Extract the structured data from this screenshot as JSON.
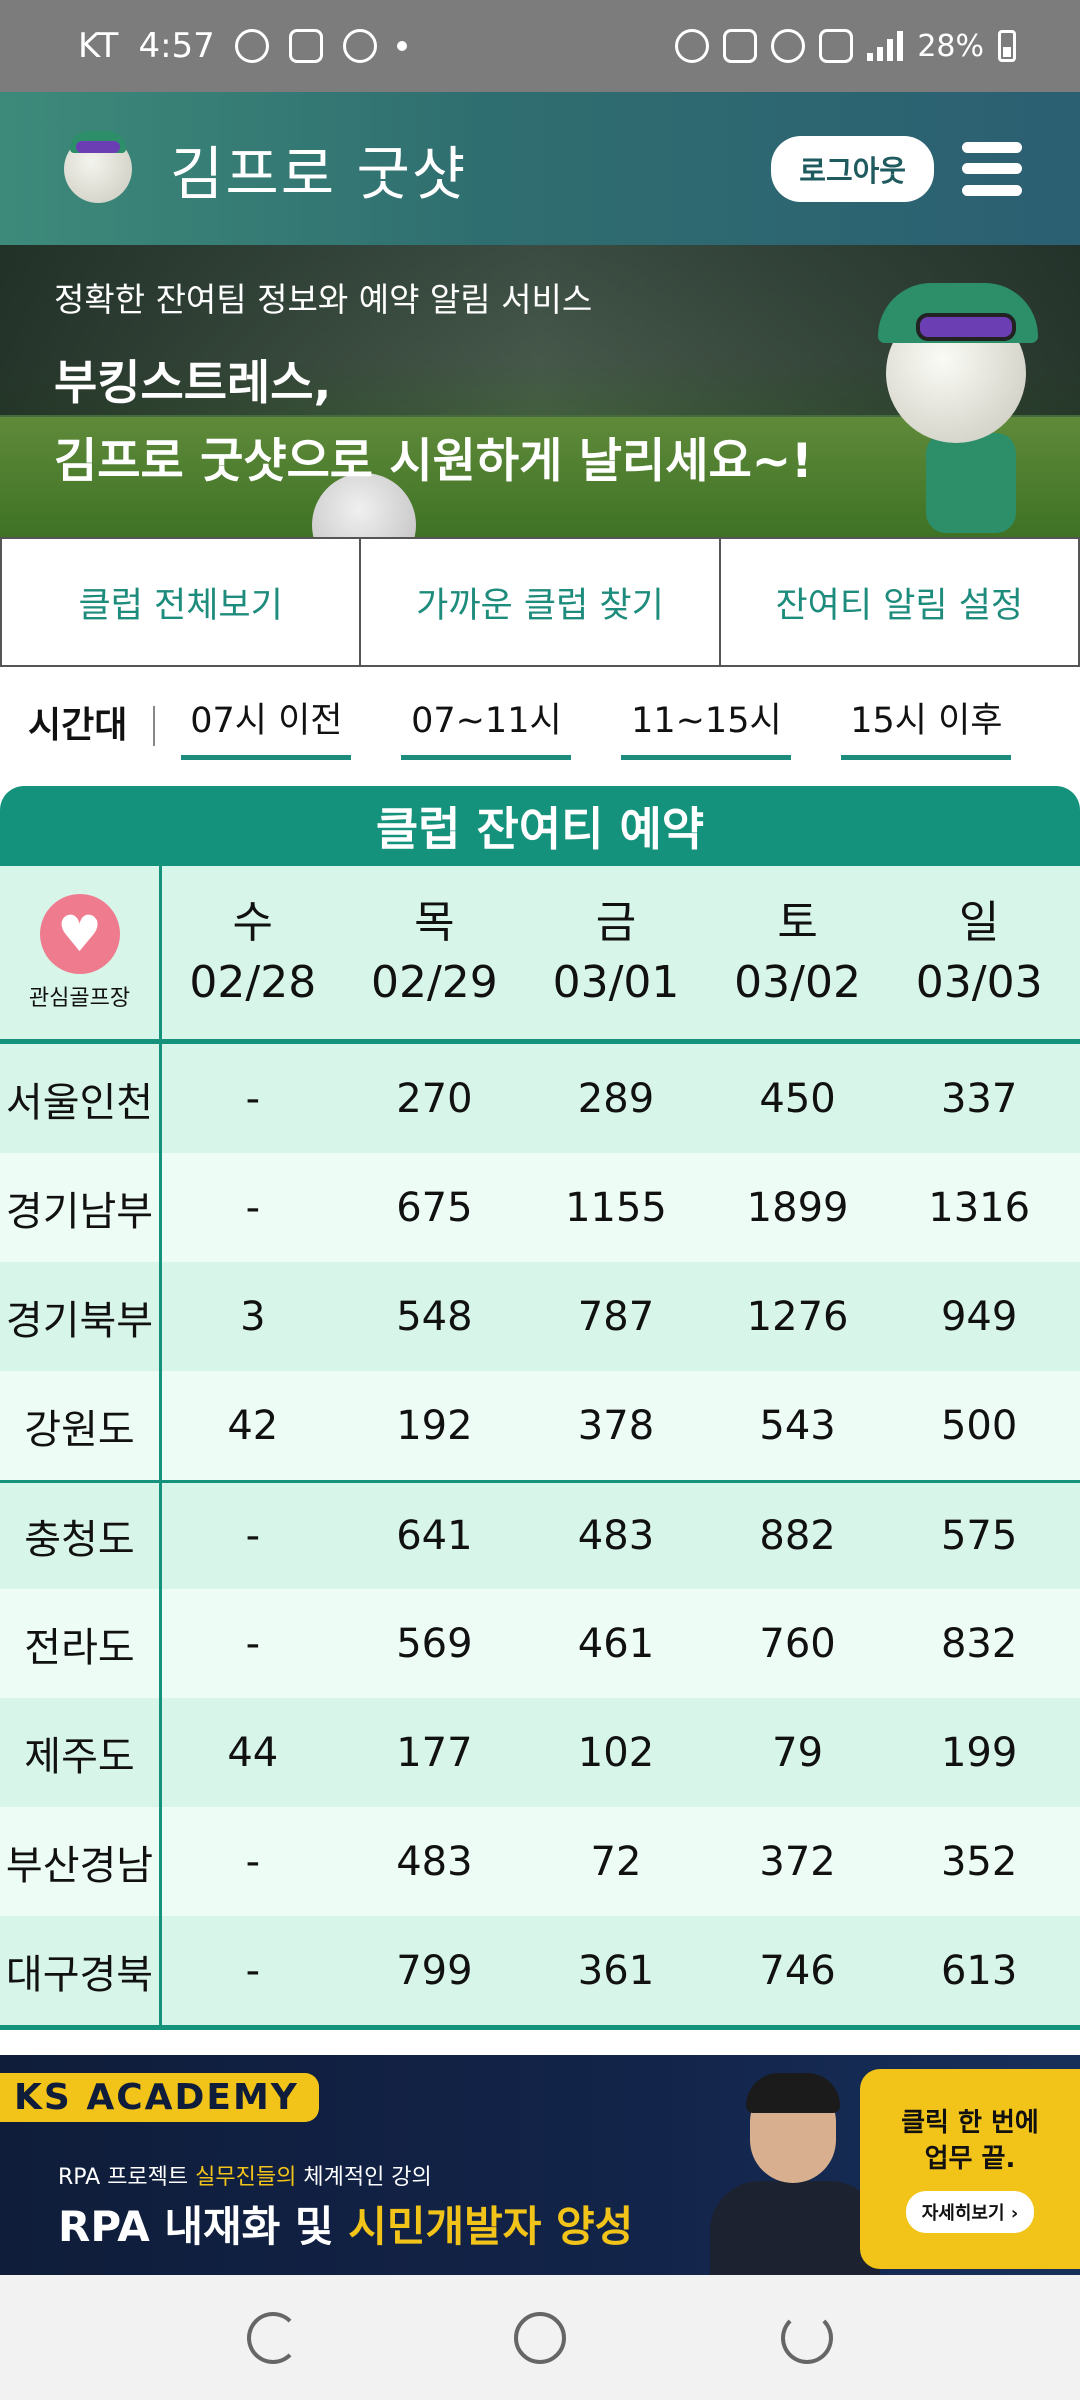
{
  "status_bar": {
    "carrier": "KT",
    "time": "4:57",
    "battery": "28%"
  },
  "header": {
    "title": "김프로 굿샷",
    "logout_label": "로그아웃"
  },
  "banner": {
    "subtitle": "정확한 잔여팀 정보와 예약 알림 서비스",
    "headline_line1": "부킹스트레스,",
    "headline_line2": "김프로 굿샷으로 시원하게 날리세요~!"
  },
  "nav": [
    "클럽 전체보기",
    "가까운 클럽 찾기",
    "잔여티 알림 설정"
  ],
  "time_filter": {
    "label": "시간대",
    "options": [
      "07시 이전",
      "07~11시",
      "11~15시",
      "15시 이후"
    ]
  },
  "table": {
    "title": "클럽 잔여티 예약",
    "favorite_label": "관심골프장",
    "days": [
      {
        "weekday": "수",
        "date": "02/28"
      },
      {
        "weekday": "목",
        "date": "02/29"
      },
      {
        "weekday": "금",
        "date": "03/01"
      },
      {
        "weekday": "토",
        "date": "03/02"
      },
      {
        "weekday": "일",
        "date": "03/03"
      }
    ],
    "rows": [
      {
        "region": "서울인천",
        "values": [
          "-",
          "270",
          "289",
          "450",
          "337"
        ]
      },
      {
        "region": "경기남부",
        "values": [
          "-",
          "675",
          "1155",
          "1899",
          "1316"
        ]
      },
      {
        "region": "경기북부",
        "values": [
          "3",
          "548",
          "787",
          "1276",
          "949"
        ]
      },
      {
        "region": "강원도",
        "values": [
          "42",
          "192",
          "378",
          "543",
          "500"
        ]
      },
      {
        "region": "충청도",
        "values": [
          "-",
          "641",
          "483",
          "882",
          "575"
        ]
      },
      {
        "region": "전라도",
        "values": [
          "-",
          "569",
          "461",
          "760",
          "832"
        ]
      },
      {
        "region": "제주도",
        "values": [
          "44",
          "177",
          "102",
          "79",
          "199"
        ]
      },
      {
        "region": "부산경남",
        "values": [
          "-",
          "483",
          "72",
          "372",
          "352"
        ]
      },
      {
        "region": "대구경북",
        "values": [
          "-",
          "799",
          "361",
          "746",
          "613"
        ]
      }
    ]
  },
  "ad": {
    "logo": "KS ACADEMY",
    "sub_pre": "RPA 프로젝트 ",
    "sub_hl": "실무진들의",
    "sub_post": " 체계적인 강의",
    "main_pre": "RPA 내재화 및 ",
    "main_hl": "시민개발자 양성",
    "box_line1": "클릭 한 번에",
    "box_line2": "업무 끝.",
    "more_label": "자세히보기 ›"
  }
}
